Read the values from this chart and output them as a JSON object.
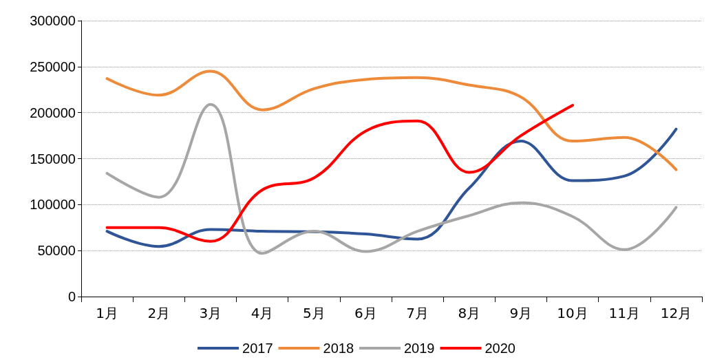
{
  "chart_data": {
    "type": "line",
    "categories": [
      "1月",
      "2月",
      "3月",
      "4月",
      "5月",
      "6月",
      "7月",
      "8月",
      "9月",
      "10月",
      "11月",
      "12月"
    ],
    "series": [
      {
        "name": "2017",
        "color": "#2f5597",
        "values": [
          71000,
          54500,
          73000,
          71000,
          70500,
          68000,
          62500,
          118000,
          169000,
          126000,
          131000,
          182000
        ]
      },
      {
        "name": "2018",
        "color": "#ed8b3a",
        "values": [
          237000,
          219000,
          245000,
          203000,
          226000,
          236000,
          238000,
          230000,
          217000,
          169000,
          173000,
          138000
        ]
      },
      {
        "name": "2019",
        "color": "#a6a6a6",
        "values": [
          134000,
          108000,
          209000,
          47000,
          71000,
          49000,
          71000,
          88000,
          102000,
          87000,
          51000,
          97000
        ]
      },
      {
        "name": "2020",
        "color": "#ff0000",
        "values": [
          75000,
          75000,
          60000,
          116000,
          129000,
          180000,
          191000,
          135000,
          175000,
          208000,
          null,
          null
        ]
      }
    ],
    "ylim": [
      0,
      300000
    ],
    "yticks": [
      0,
      50000,
      100000,
      150000,
      200000,
      250000,
      300000
    ],
    "grid": "y",
    "legend": "bottom",
    "marker": "none",
    "line_style": "solid"
  }
}
